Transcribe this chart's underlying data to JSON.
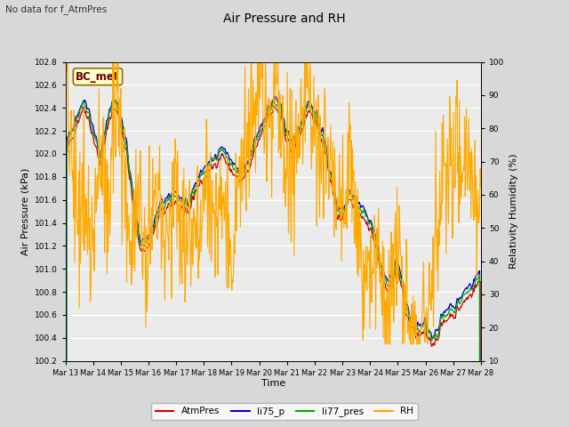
{
  "title": "Air Pressure and RH",
  "subtitle": "No data for f_AtmPres",
  "box_label": "BC_met",
  "xlabel": "Time",
  "ylabel_left": "Air Pressure (kPa)",
  "ylabel_right": "Relativity Humidity (%)",
  "ylim_left": [
    100.2,
    102.8
  ],
  "ylim_right": [
    10,
    100
  ],
  "yticks_left": [
    100.2,
    100.4,
    100.6,
    100.8,
    101.0,
    101.2,
    101.4,
    101.6,
    101.8,
    102.0,
    102.2,
    102.4,
    102.6,
    102.8
  ],
  "yticks_right": [
    10,
    20,
    30,
    40,
    50,
    60,
    70,
    80,
    90,
    100
  ],
  "xtick_labels": [
    "Mar 13",
    "Mar 14",
    "Mar 15",
    "Mar 16",
    "Mar 17",
    "Mar 18",
    "Mar 19",
    "Mar 20",
    "Mar 21",
    "Mar 22",
    "Mar 23",
    "Mar 24",
    "Mar 25",
    "Mar 26",
    "Mar 27",
    "Mar 28"
  ],
  "colors": {
    "AtmPres": "#cc0000",
    "li75_p": "#0000cc",
    "li77_pres": "#00aa00",
    "RH": "#ffaa00"
  },
  "legend_labels": [
    "AtmPres",
    "li75_p",
    "li77_pres",
    "RH"
  ],
  "background_color": "#d8d8d8",
  "plot_bg_color": "#ebebeb",
  "grid_color": "white",
  "seed": 42
}
